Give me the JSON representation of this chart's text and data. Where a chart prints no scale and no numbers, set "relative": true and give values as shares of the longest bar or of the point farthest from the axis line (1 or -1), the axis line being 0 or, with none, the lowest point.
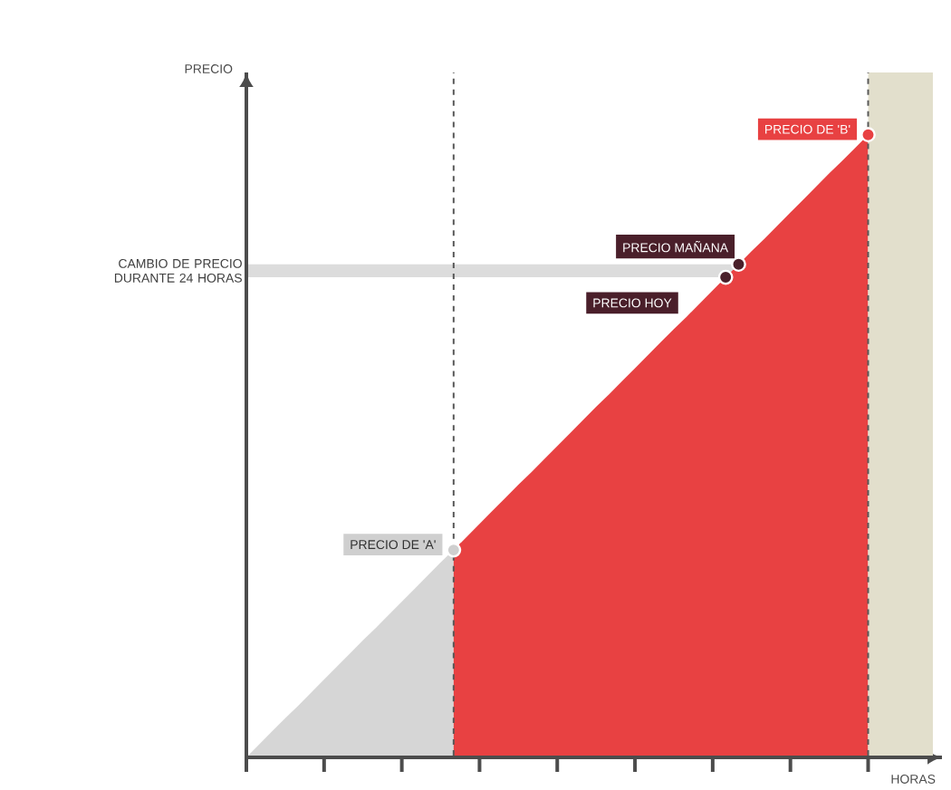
{
  "chart_data": {
    "type": "area",
    "relative": true,
    "xlabel": "HORAS",
    "ylabel": "PRECIO",
    "categories": [
      null,
      null,
      null,
      null,
      null,
      null,
      null,
      null,
      null,
      null,
      null,
      null,
      null,
      null,
      null,
      null,
      null,
      null,
      null,
      null,
      null,
      null,
      null,
      null,
      null,
      null,
      null,
      null,
      null,
      null,
      null,
      null,
      null,
      null,
      null,
      null,
      null,
      null,
      null,
      null,
      null,
      null,
      null,
      null,
      null,
      null,
      null,
      null,
      null
    ],
    "series": [
      {
        "color": "#d6d6d6",
        "values": [
          0,
          0.021,
          0.042,
          0.063,
          0.083,
          0.104,
          0.125,
          0.146,
          0.167,
          0.188,
          0.208,
          0.229,
          0.25,
          0.271,
          0.292,
          0.313,
          0.333,
          null,
          null,
          null,
          null,
          null,
          null,
          null,
          null,
          null,
          null,
          null,
          null,
          null,
          null,
          null,
          null,
          null,
          null,
          null,
          null,
          null,
          null,
          null,
          null,
          null,
          null,
          null,
          null,
          null,
          null,
          null,
          null
        ]
      },
      {
        "color": "#e84142",
        "values": [
          null,
          null,
          null,
          null,
          null,
          null,
          null,
          null,
          null,
          null,
          null,
          null,
          null,
          null,
          null,
          null,
          0.333,
          0.354,
          0.375,
          0.396,
          0.417,
          0.438,
          0.458,
          0.479,
          0.5,
          0.521,
          0.542,
          0.563,
          0.583,
          0.604,
          0.625,
          0.646,
          0.667,
          0.688,
          0.708,
          0.729,
          0.75,
          0.771,
          0.792,
          0.813,
          0.833,
          0.854,
          0.875,
          0.896,
          0.917,
          0.938,
          0.958,
          0.979,
          1
        ]
      }
    ],
    "bands": [
      {
        "axis": "y",
        "from": 0.771,
        "to": 0.792,
        "label": "CAMBIO DE PRECIO DURANTE 24 HORAS",
        "color": "#dcdcdc"
      }
    ],
    "annotations": [
      "PRECIO DE 'A'",
      "PRECIO HOY",
      "PRECIO MAÑANA",
      "PRECIO DE 'B'"
    ]
  }
}
